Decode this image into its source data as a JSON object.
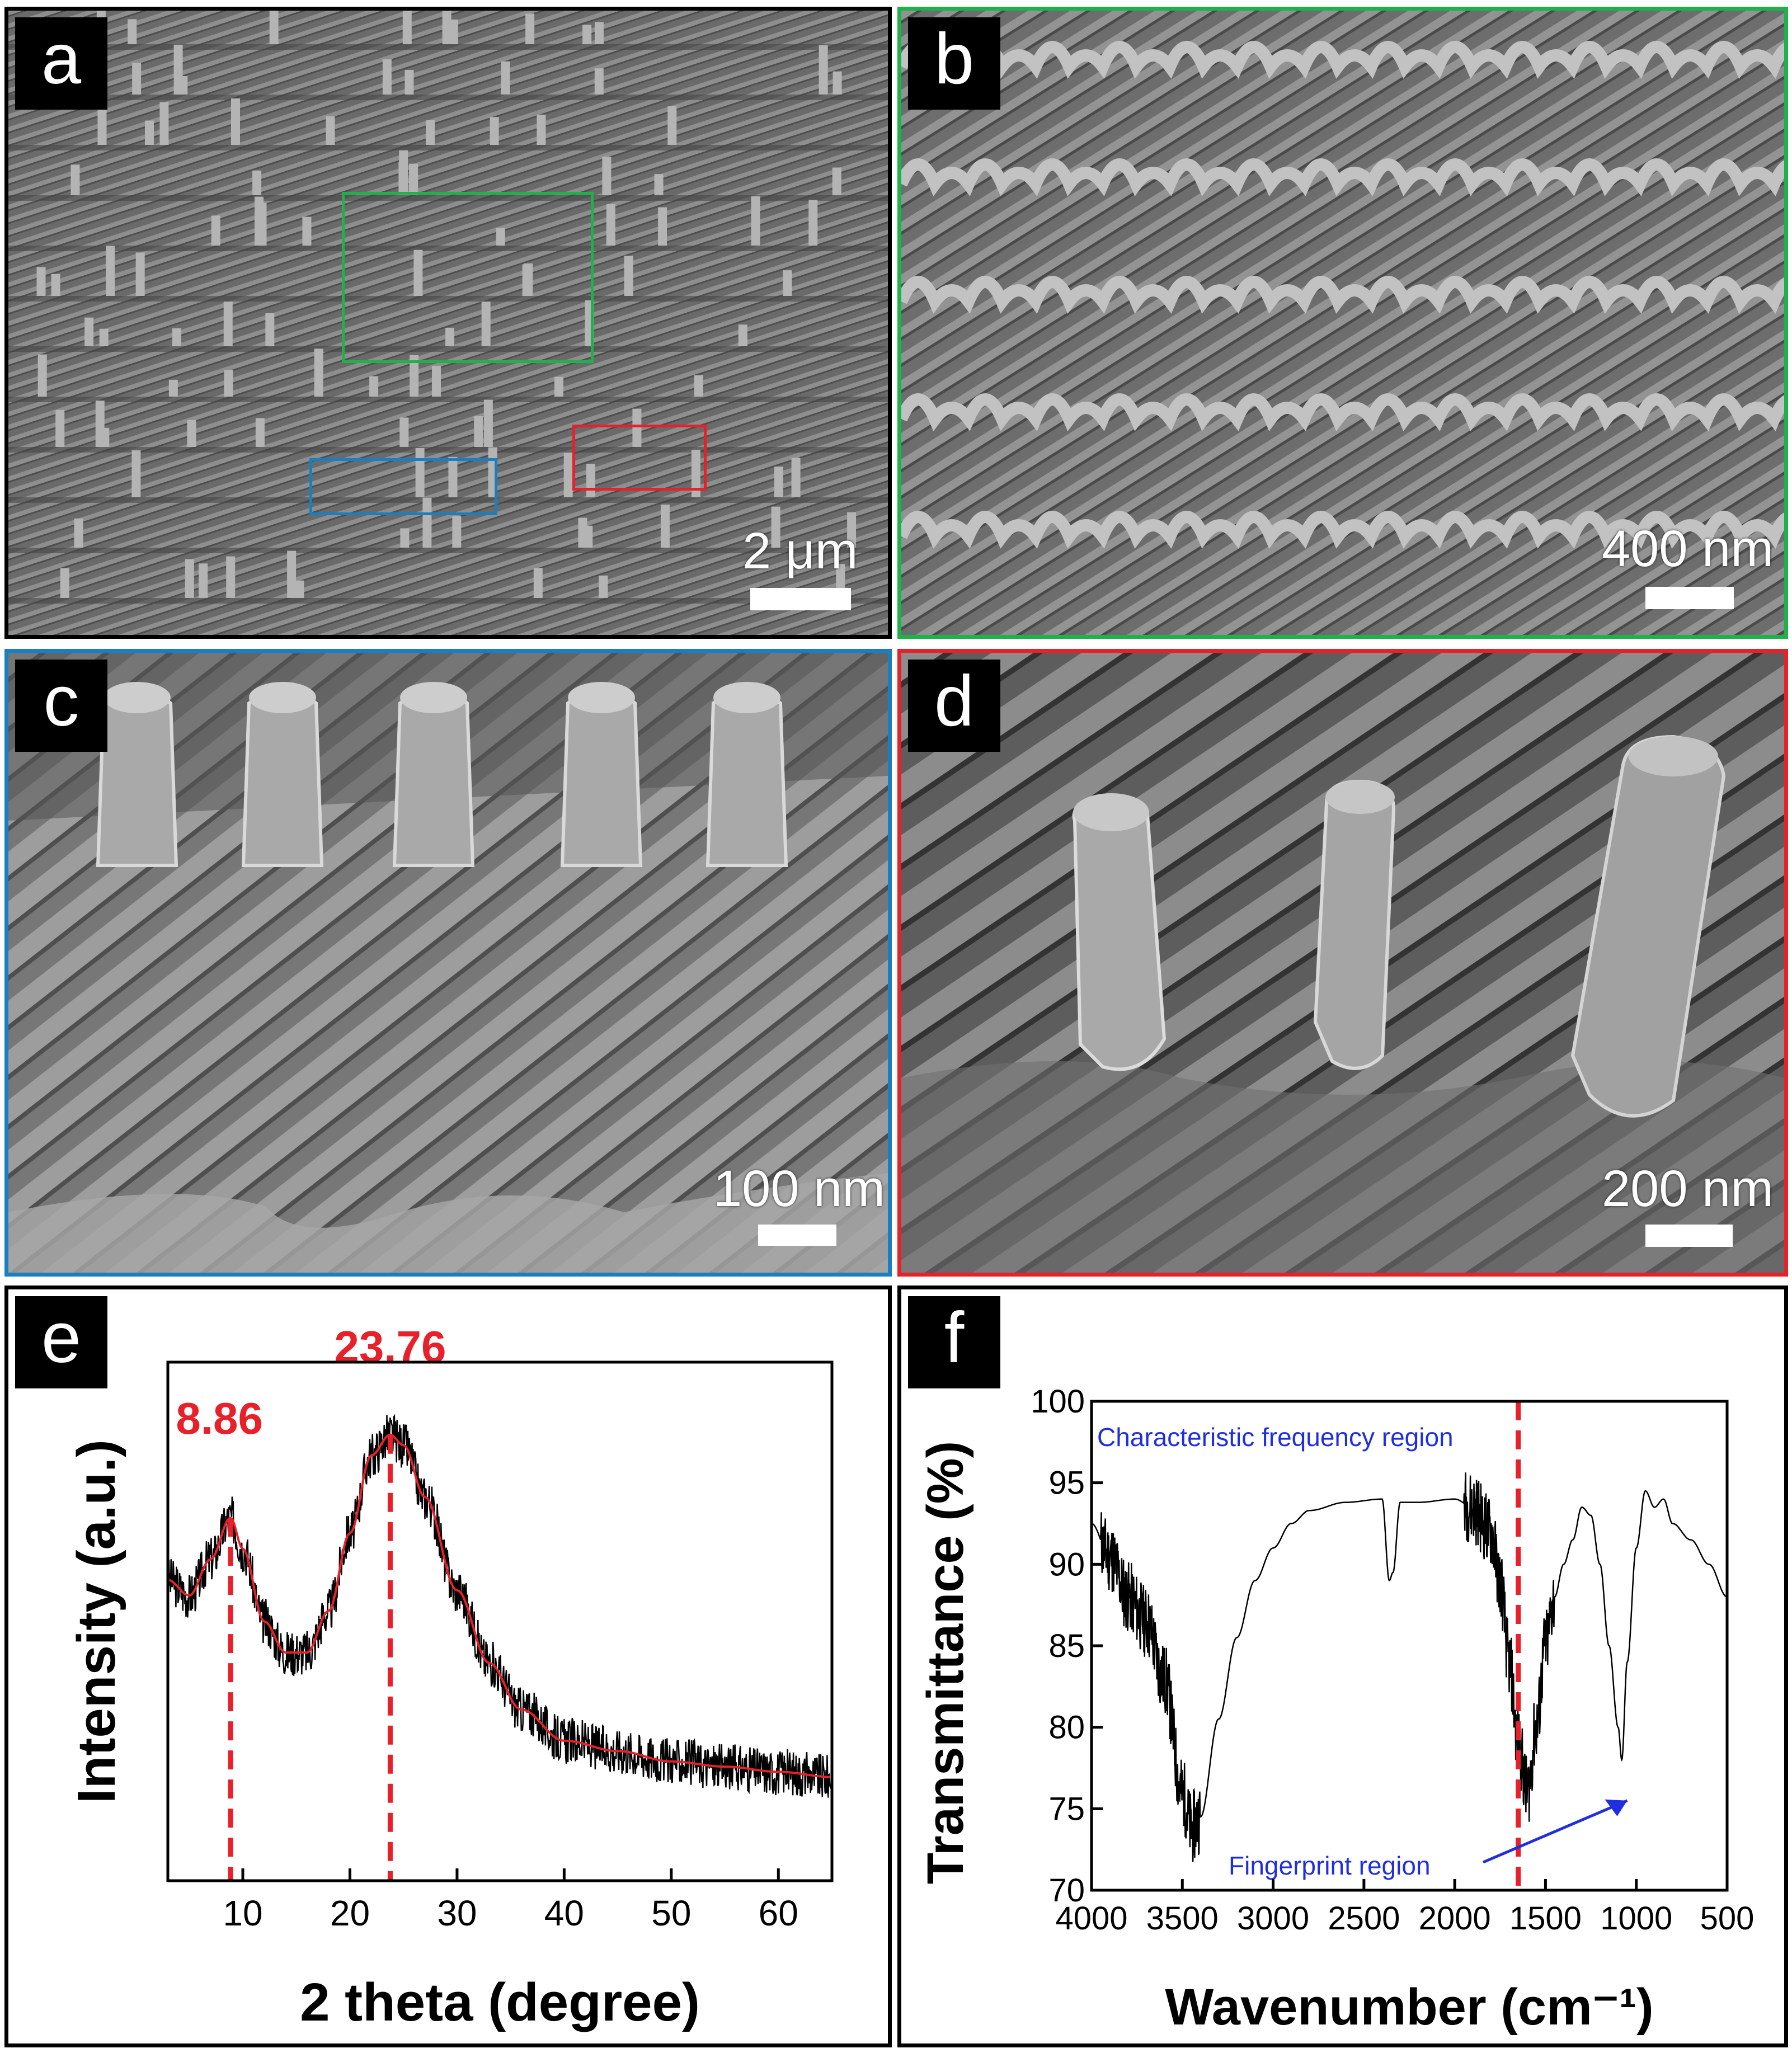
{
  "panels": {
    "a": {
      "letter": "a",
      "scale_label": "2 μm",
      "border_color": "#000000"
    },
    "b": {
      "letter": "b",
      "scale_label": "400 nm",
      "border_color": "#1fb24a"
    },
    "c": {
      "letter": "c",
      "scale_label": "100 nm",
      "border_color": "#1a7fc1"
    },
    "d": {
      "letter": "d",
      "scale_label": "200 nm",
      "border_color": "#e8202a"
    },
    "e": {
      "letter": "e"
    },
    "f": {
      "letter": "f"
    }
  },
  "roi_boxes": [
    {
      "name": "green-roi-box",
      "color": "#1fb24a",
      "target_panel": "b"
    },
    {
      "name": "red-roi-box",
      "color": "#e8202a",
      "target_panel": "d"
    },
    {
      "name": "blue-roi-box",
      "color": "#1a7fc1",
      "target_panel": "c"
    }
  ],
  "chart_data": [
    {
      "panel": "e",
      "type": "line",
      "xlabel": "2 theta (degree)",
      "ylabel": "Intensity (a.u.)",
      "xlim": [
        3,
        65
      ],
      "xticks": [
        10,
        20,
        30,
        40,
        50,
        60
      ],
      "y_tick_labels": false,
      "series": [
        {
          "style": "noisy-raw",
          "color": "#000000",
          "x": [
            3,
            5,
            7,
            8.86,
            10,
            12,
            14,
            16,
            18,
            20,
            22,
            23.76,
            25,
            27,
            30,
            33,
            36,
            40,
            45,
            50,
            55,
            60,
            65
          ],
          "y": [
            0.58,
            0.55,
            0.62,
            0.7,
            0.64,
            0.5,
            0.44,
            0.44,
            0.52,
            0.67,
            0.82,
            0.86,
            0.84,
            0.74,
            0.56,
            0.42,
            0.33,
            0.27,
            0.25,
            0.23,
            0.22,
            0.21,
            0.2
          ]
        },
        {
          "style": "smoothed-fit",
          "color": "#e8202a",
          "x": [
            3,
            5,
            7,
            8.86,
            10,
            12,
            14,
            16,
            18,
            20,
            22,
            23.76,
            25,
            27,
            30,
            33,
            36,
            40,
            45,
            50,
            55,
            60,
            65
          ],
          "y": [
            0.58,
            0.55,
            0.62,
            0.7,
            0.64,
            0.5,
            0.44,
            0.44,
            0.52,
            0.67,
            0.82,
            0.86,
            0.84,
            0.74,
            0.56,
            0.42,
            0.33,
            0.27,
            0.25,
            0.23,
            0.22,
            0.21,
            0.2
          ]
        }
      ],
      "peaks": [
        {
          "x": 8.86,
          "label": "8.86",
          "color": "#e8202a"
        },
        {
          "x": 23.76,
          "label": "23.76",
          "color": "#e8202a"
        }
      ]
    },
    {
      "panel": "f",
      "type": "line",
      "xlabel": "Wavenumber (cm⁻¹)",
      "ylabel": "Transmittance (%)",
      "xlim": [
        4000,
        500
      ],
      "ylim": [
        70,
        100
      ],
      "xticks": [
        4000,
        3500,
        3000,
        2500,
        2000,
        1500,
        1000,
        500
      ],
      "yticks": [
        70,
        75,
        80,
        85,
        90,
        95,
        100
      ],
      "series": [
        {
          "color": "#000000",
          "x": [
            4000,
            3900,
            3800,
            3700,
            3600,
            3500,
            3450,
            3400,
            3300,
            3200,
            3100,
            3000,
            2900,
            2800,
            2600,
            2400,
            2360,
            2340,
            2300,
            2200,
            2000,
            1900,
            1800,
            1750,
            1700,
            1650,
            1600,
            1550,
            1500,
            1450,
            1400,
            1350,
            1300,
            1250,
            1200,
            1150,
            1100,
            1080,
            1050,
            1000,
            950,
            900,
            850,
            800,
            700,
            600,
            500
          ],
          "y": [
            92.5,
            90.5,
            88.0,
            86.5,
            83.0,
            76.0,
            73.8,
            74.5,
            80.5,
            85.5,
            89.0,
            91.0,
            92.5,
            93.3,
            93.8,
            94.0,
            89.0,
            89.5,
            93.8,
            93.8,
            94.0,
            93.5,
            92.0,
            89.0,
            84.0,
            79.0,
            76.0,
            80.0,
            85.0,
            88.0,
            90.0,
            91.5,
            93.5,
            93.0,
            90.0,
            85.0,
            80.0,
            78.0,
            84.0,
            91.0,
            94.5,
            93.5,
            94.0,
            92.5,
            91.5,
            90.0,
            88.0
          ]
        }
      ],
      "divider_x": 1650,
      "annotations": [
        {
          "text": "Characteristic frequency region",
          "color": "#1f2fe0"
        },
        {
          "text": "Fingerprint region",
          "color": "#1f2fe0"
        }
      ]
    }
  ]
}
